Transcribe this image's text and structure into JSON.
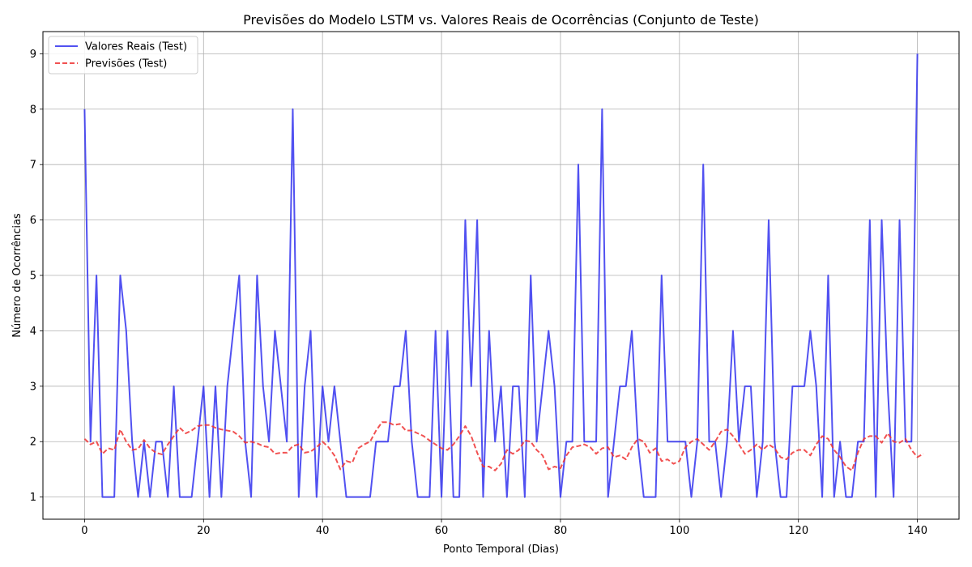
{
  "chart_data": {
    "type": "line",
    "title": "Previsões do Modelo LSTM vs. Valores Reais de Ocorrências (Conjunto de Teste)",
    "xlabel": "Ponto Temporal (Dias)",
    "ylabel": "Número de Ocorrências",
    "xlim": [
      -7,
      147
    ],
    "ylim": [
      0.6,
      9.4
    ],
    "xticks": [
      0,
      20,
      40,
      60,
      80,
      100,
      120,
      140
    ],
    "yticks": [
      1,
      2,
      3,
      4,
      5,
      6,
      7,
      8,
      9
    ],
    "grid": true,
    "legend_position": "top-left",
    "series": [
      {
        "name": "Valores Reais (Test)",
        "color": "#3333ee",
        "style": "solid",
        "values": [
          8,
          2,
          5,
          1,
          1,
          1,
          5,
          4,
          2,
          1,
          2,
          1,
          2,
          2,
          1,
          3,
          1,
          1,
          1,
          2,
          3,
          1,
          3,
          1,
          3,
          4,
          5,
          2,
          1,
          5,
          3,
          2,
          4,
          3,
          2,
          8,
          1,
          3,
          4,
          1,
          3,
          2,
          3,
          2,
          1,
          1,
          1,
          1,
          1,
          2,
          2,
          2,
          3,
          3,
          4,
          2,
          1,
          1,
          1,
          4,
          1,
          4,
          1,
          1,
          6,
          3,
          6,
          1,
          4,
          2,
          3,
          1,
          3,
          3,
          1,
          5,
          2,
          3,
          4,
          3,
          1,
          2,
          2,
          7,
          2,
          2,
          2,
          8,
          1,
          2,
          3,
          3,
          4,
          2,
          1,
          1,
          1,
          5,
          2,
          2,
          2,
          2,
          1,
          2,
          7,
          2,
          2,
          1,
          2,
          4,
          2,
          3,
          3,
          1,
          2,
          6,
          2,
          1,
          1,
          3,
          3,
          3,
          4,
          3,
          1,
          5,
          1,
          2,
          1,
          1,
          2,
          2,
          6,
          1,
          6,
          3,
          1,
          6,
          2,
          2,
          9
        ]
      },
      {
        "name": "Previsões (Test)",
        "color": "#ee3333",
        "style": "dashed",
        "values": [
          2.05,
          1.95,
          2.0,
          1.78,
          1.88,
          1.85,
          2.22,
          2.0,
          1.85,
          1.87,
          2.03,
          1.88,
          1.8,
          1.77,
          1.95,
          2.1,
          2.25,
          2.15,
          2.2,
          2.28,
          2.3,
          2.3,
          2.25,
          2.22,
          2.2,
          2.18,
          2.1,
          1.98,
          2.0,
          1.97,
          1.92,
          1.9,
          1.78,
          1.8,
          1.8,
          1.92,
          1.95,
          1.8,
          1.82,
          1.9,
          2.0,
          1.9,
          1.75,
          1.5,
          1.65,
          1.62,
          1.88,
          1.95,
          2.0,
          2.2,
          2.35,
          2.35,
          2.3,
          2.32,
          2.2,
          2.2,
          2.15,
          2.1,
          2.02,
          1.95,
          1.88,
          1.85,
          1.95,
          2.1,
          2.28,
          2.1,
          1.8,
          1.55,
          1.55,
          1.48,
          1.6,
          1.85,
          1.78,
          1.85,
          2.02,
          2.0,
          1.85,
          1.75,
          1.5,
          1.55,
          1.52,
          1.75,
          1.9,
          1.92,
          1.95,
          1.9,
          1.78,
          1.88,
          1.9,
          1.72,
          1.75,
          1.68,
          1.9,
          2.05,
          2.0,
          1.8,
          1.88,
          1.65,
          1.68,
          1.6,
          1.65,
          1.9,
          2.0,
          2.05,
          1.95,
          1.85,
          2.0,
          2.18,
          2.22,
          2.1,
          1.95,
          1.78,
          1.85,
          1.95,
          1.85,
          1.95,
          1.88,
          1.72,
          1.68,
          1.8,
          1.85,
          1.85,
          1.75,
          1.95,
          2.1,
          2.05,
          1.85,
          1.72,
          1.55,
          1.48,
          1.8,
          2.05,
          2.1,
          2.1,
          1.98,
          2.15,
          2.0,
          1.98,
          2.05,
          1.85,
          1.72,
          1.78
        ]
      }
    ]
  }
}
